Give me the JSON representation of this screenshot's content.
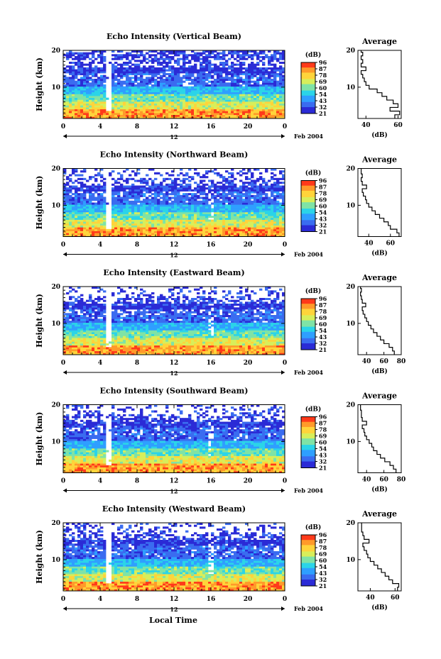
{
  "figure": {
    "xlabel_bottom": "Local Time",
    "heatmap_ylabel": "Height (km)",
    "date_label": "Feb 2004",
    "hour_marker_label": "12",
    "colorbar_unit": "(dB)",
    "colorbar_ticks": [
      "96",
      "87",
      "78",
      "69",
      "60",
      "54",
      "43",
      "32",
      "21"
    ],
    "profile_title": "Average",
    "profile_xlabel": "(dB)",
    "palette": [
      "#2b2bd6",
      "#3a6cf0",
      "#2f9fff",
      "#2bd4e8",
      "#7fe3a6",
      "#d8ee5a",
      "#ffd43b",
      "#ff9a2a",
      "#ff3a1a"
    ]
  },
  "chart_data": [
    {
      "type": "heatmap",
      "title": "Echo Intensity (Vertical Beam)",
      "xlabel": "Local Time",
      "ylabel": "Height (km)",
      "x_ticks": [
        "0",
        "4",
        "8",
        "12",
        "16",
        "20",
        "0"
      ],
      "xlim": [
        0,
        24
      ],
      "y_ticks": [
        "10",
        "20"
      ],
      "ylim": [
        1.5,
        20
      ],
      "colorbar": {
        "label": "(dB)",
        "ticks": [
          "96",
          "87",
          "78",
          "69",
          "60",
          "54",
          "43",
          "32",
          "21"
        ]
      },
      "profile": {
        "title": "Average",
        "xlabel": "(dB)",
        "x_ticks": [
          "40",
          "60"
        ],
        "xlim": [
          35,
          62
        ],
        "y_ticks": [
          "10",
          "20"
        ],
        "ylim": [
          1.5,
          20
        ],
        "heights": [
          2,
          3,
          4,
          5,
          6,
          7,
          8,
          9,
          10,
          11,
          12,
          13,
          14,
          15,
          16,
          17,
          18,
          19,
          20
        ],
        "values": [
          58,
          61,
          55,
          60,
          57,
          53,
          50,
          47,
          42,
          40,
          39,
          38,
          37,
          40,
          37,
          38,
          37,
          38,
          37
        ]
      }
    },
    {
      "type": "heatmap",
      "title": "Echo Intensity (Northward Beam)",
      "xlabel": "Local Time",
      "ylabel": "Height (km)",
      "x_ticks": [
        "0",
        "4",
        "8",
        "12",
        "16",
        "20",
        "0"
      ],
      "xlim": [
        0,
        24
      ],
      "y_ticks": [
        "10",
        "20"
      ],
      "ylim": [
        1.5,
        20
      ],
      "colorbar": {
        "label": "(dB)",
        "ticks": [
          "96",
          "87",
          "78",
          "69",
          "60",
          "54",
          "43",
          "32",
          "21"
        ]
      },
      "profile": {
        "title": "Average",
        "xlabel": "(dB)",
        "x_ticks": [
          "40",
          "60"
        ],
        "xlim": [
          30,
          70
        ],
        "y_ticks": [
          "10",
          "20"
        ],
        "ylim": [
          1.5,
          20
        ],
        "heights": [
          2,
          3,
          4,
          5,
          6,
          7,
          8,
          9,
          10,
          11,
          12,
          13,
          14,
          15,
          16,
          17,
          18,
          19,
          20
        ],
        "values": [
          68,
          66,
          60,
          58,
          54,
          50,
          46,
          43,
          40,
          38,
          37,
          35,
          34,
          38,
          34,
          33,
          34,
          33,
          33
        ]
      }
    },
    {
      "type": "heatmap",
      "title": "Echo Intensity (Eastward Beam)",
      "xlabel": "Local Time",
      "ylabel": "Height (km)",
      "x_ticks": [
        "0",
        "4",
        "8",
        "12",
        "16",
        "20",
        "0"
      ],
      "xlim": [
        0,
        24
      ],
      "y_ticks": [
        "10",
        "20"
      ],
      "ylim": [
        1.5,
        20
      ],
      "colorbar": {
        "label": "(dB)",
        "ticks": [
          "96",
          "87",
          "78",
          "69",
          "60",
          "54",
          "43",
          "32",
          "21"
        ]
      },
      "profile": {
        "title": "Average",
        "xlabel": "(dB)",
        "x_ticks": [
          "40",
          "60",
          "80"
        ],
        "xlim": [
          30,
          80
        ],
        "y_ticks": [
          "10",
          "20"
        ],
        "ylim": [
          1.5,
          20
        ],
        "heights": [
          2,
          3,
          4,
          5,
          6,
          7,
          8,
          9,
          10,
          11,
          12,
          13,
          14,
          15,
          16,
          17,
          18,
          19,
          20
        ],
        "values": [
          72,
          70,
          66,
          60,
          56,
          52,
          48,
          45,
          42,
          40,
          38,
          36,
          35,
          39,
          35,
          34,
          33,
          34,
          33
        ]
      }
    },
    {
      "type": "heatmap",
      "title": "Echo Intensity (Southward Beam)",
      "xlabel": "Local Time",
      "ylabel": "Height (km)",
      "x_ticks": [
        "0",
        "4",
        "8",
        "12",
        "16",
        "20",
        "0"
      ],
      "xlim": [
        0,
        24
      ],
      "y_ticks": [
        "10",
        "20"
      ],
      "ylim": [
        1.5,
        20
      ],
      "colorbar": {
        "label": "(dB)",
        "ticks": [
          "96",
          "87",
          "78",
          "69",
          "60",
          "54",
          "43",
          "32",
          "21"
        ]
      },
      "profile": {
        "title": "Average",
        "xlabel": "(dB)",
        "x_ticks": [
          "40",
          "60",
          "80"
        ],
        "xlim": [
          30,
          80
        ],
        "y_ticks": [
          "10",
          "20"
        ],
        "ylim": [
          1.5,
          20
        ],
        "heights": [
          2,
          3,
          4,
          5,
          6,
          7,
          8,
          9,
          10,
          11,
          12,
          13,
          14,
          15,
          16,
          17,
          18,
          19,
          20
        ],
        "values": [
          74,
          71,
          67,
          61,
          56,
          52,
          48,
          46,
          43,
          40,
          38,
          37,
          35,
          40,
          35,
          34,
          34,
          33,
          33
        ]
      }
    },
    {
      "type": "heatmap",
      "title": "Echo Intensity (Westward Beam)",
      "xlabel": "Local Time",
      "ylabel": "Height (km)",
      "x_ticks": [
        "0",
        "4",
        "8",
        "12",
        "16",
        "20",
        "0"
      ],
      "xlim": [
        0,
        24
      ],
      "y_ticks": [
        "10",
        "20"
      ],
      "ylim": [
        1.5,
        20
      ],
      "colorbar": {
        "label": "(dB)",
        "ticks": [
          "96",
          "87",
          "78",
          "69",
          "60",
          "54",
          "43",
          "32",
          "21"
        ]
      },
      "profile": {
        "title": "Average",
        "xlabel": "(dB)",
        "x_ticks": [
          "40",
          "60"
        ],
        "xlim": [
          30,
          65
        ],
        "y_ticks": [
          "10",
          "20"
        ],
        "ylim": [
          1.5,
          20
        ],
        "heights": [
          2,
          3,
          4,
          5,
          6,
          7,
          8,
          9,
          10,
          11,
          12,
          13,
          14,
          15,
          16,
          17,
          18,
          19,
          20
        ],
        "values": [
          62,
          63,
          58,
          55,
          52,
          49,
          46,
          43,
          40,
          38,
          37,
          35,
          34,
          39,
          35,
          34,
          33,
          33,
          33
        ]
      }
    }
  ]
}
